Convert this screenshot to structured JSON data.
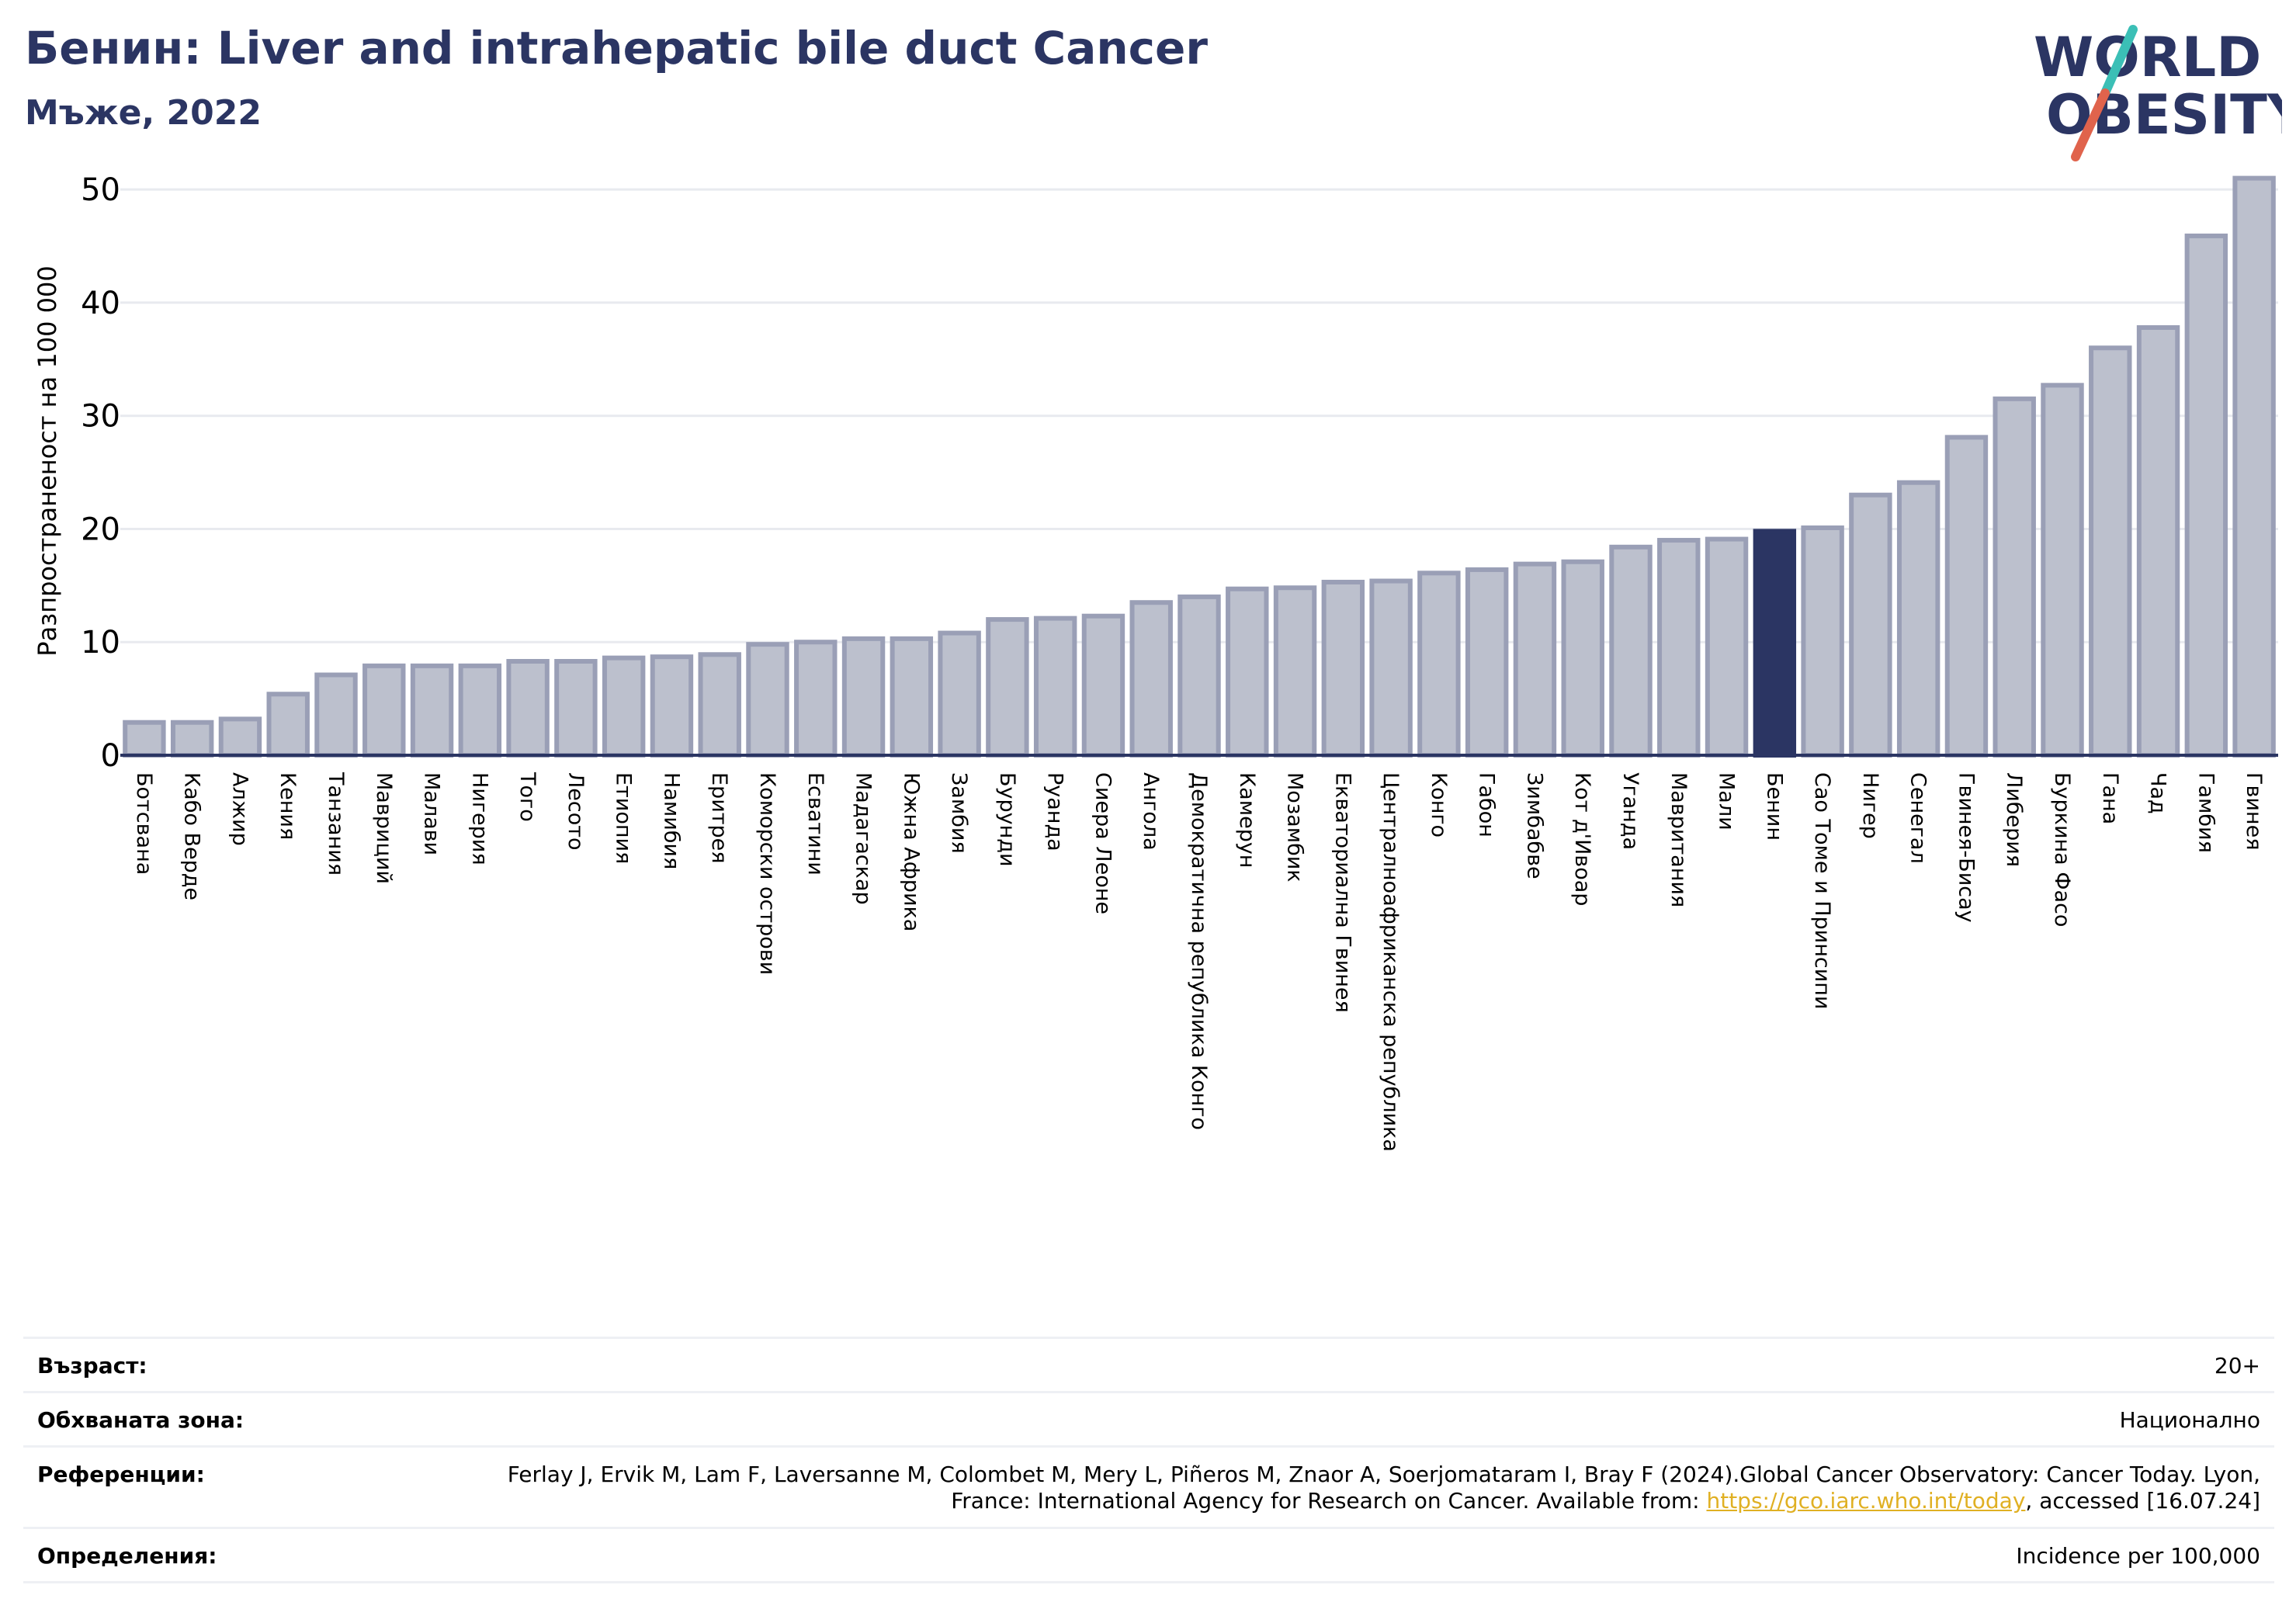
{
  "header": {
    "title": "Бенин: Liver and intrahepatic bile duct Cancer",
    "subtitle": "Мъже, 2022"
  },
  "logo": {
    "line1": "WORLD",
    "line2": "OBESITY",
    "colors": {
      "text": "#2b3563",
      "slash_top": "#3bbfb6",
      "slash_bottom": "#e0634c"
    }
  },
  "chart_data": {
    "type": "bar",
    "ylabel": "Разпространеност  на 100 000",
    "xlabel": "",
    "ylim": [
      0,
      52
    ],
    "yticks": [
      0,
      10,
      20,
      30,
      40,
      50
    ],
    "grid": true,
    "highlight": "Бенин",
    "colors": {
      "bar": "#bcc0cd",
      "bar_edge": "#9a9fb6",
      "highlight": "#2b3563",
      "grid": "#e8eaef",
      "axis": "#2b3563"
    },
    "categories": [
      "Ботсвана",
      "Кабо Верде",
      "Алжир",
      "Кения",
      "Танзания",
      "Мавриций",
      "Малави",
      "Нигерия",
      "Того",
      "Лесото",
      "Етиопия",
      "Намибия",
      "Еритрея",
      "Коморски острови",
      "Есватини",
      "Мадагаскар",
      "Южна Африка",
      "Замбия",
      "Бурунди",
      "Руанда",
      "Сиера Леоне",
      "Ангола",
      "Демократична република Конго",
      "Камерун",
      "Мозамбик",
      "Екваториална Гвинея",
      "Централноафриканска република",
      "Конго",
      "Габон",
      "Зимбабве",
      "Кот д'Ивоар",
      "Уганда",
      "Мавритания",
      "Мали",
      "Бенин",
      "Сао Томе и Принсипи",
      "Нигер",
      "Сенегал",
      "Гвинея-Бисау",
      "Либерия",
      "Буркина Фасо",
      "Гана",
      "Чад",
      "Гамбия",
      "Гвинея"
    ],
    "values": [
      2.9,
      2.9,
      3.2,
      5.4,
      7.1,
      7.9,
      7.9,
      7.9,
      8.3,
      8.3,
      8.6,
      8.7,
      8.9,
      9.8,
      10.0,
      10.3,
      10.3,
      10.8,
      12.0,
      12.1,
      12.3,
      13.5,
      14.0,
      14.7,
      14.8,
      15.3,
      15.4,
      16.1,
      16.4,
      16.9,
      17.1,
      18.4,
      19.0,
      19.1,
      19.8,
      20.1,
      23.0,
      24.1,
      28.1,
      31.5,
      32.7,
      36.0,
      37.8,
      45.9,
      51.0
    ]
  },
  "footer": {
    "age_label": "Възраст:",
    "age_value": "20+",
    "coverage_label": "Обхваната зона:",
    "coverage_value": "Национално",
    "references_label": "Референции:",
    "references_text_1": "Ferlay J, Ervik M, Lam F, Laversanne M, Colombet M, Mery L, Piñeros M, Znaor A, Soerjomataram I, Bray F (2024).Global Cancer Observatory: Cancer Today. Lyon, France: International Agency for Research on Cancer. Available from: ",
    "references_link": "https://gco.iarc.who.int/today",
    "references_text_2": ", accessed [16.07.24]",
    "definitions_label": "Определения:",
    "definitions_value": "Incidence per 100,000"
  }
}
